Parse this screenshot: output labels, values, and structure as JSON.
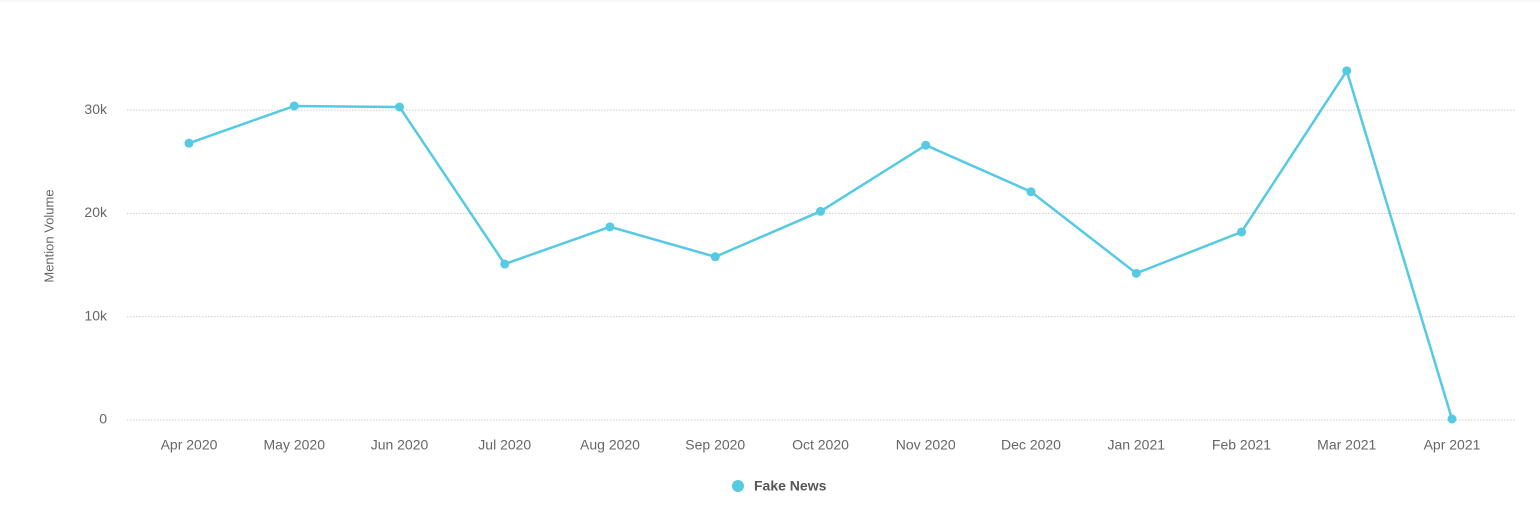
{
  "chart_data": {
    "type": "line",
    "y_label": "Mention Volume",
    "categories": [
      "Apr 2020",
      "May 2020",
      "Jun 2020",
      "Jul 2020",
      "Aug 2020",
      "Sep 2020",
      "Oct 2020",
      "Nov 2020",
      "Dec 2020",
      "Jan 2021",
      "Feb 2021",
      "Mar 2021",
      "Apr 2021"
    ],
    "series": [
      {
        "name": "Fake News",
        "color": "#56c9e3",
        "values": [
          26800,
          30400,
          30300,
          15100,
          18700,
          15800,
          20200,
          26600,
          22100,
          14200,
          18200,
          33800,
          100
        ]
      }
    ],
    "ylim": [
      0,
      36000
    ],
    "yticks": [
      0,
      {
        "value": 10000,
        "label": "10k"
      },
      {
        "value": 20000,
        "label": "20k"
      },
      {
        "value": 30000,
        "label": "30k"
      }
    ],
    "grid": true,
    "legend": "bottom"
  }
}
